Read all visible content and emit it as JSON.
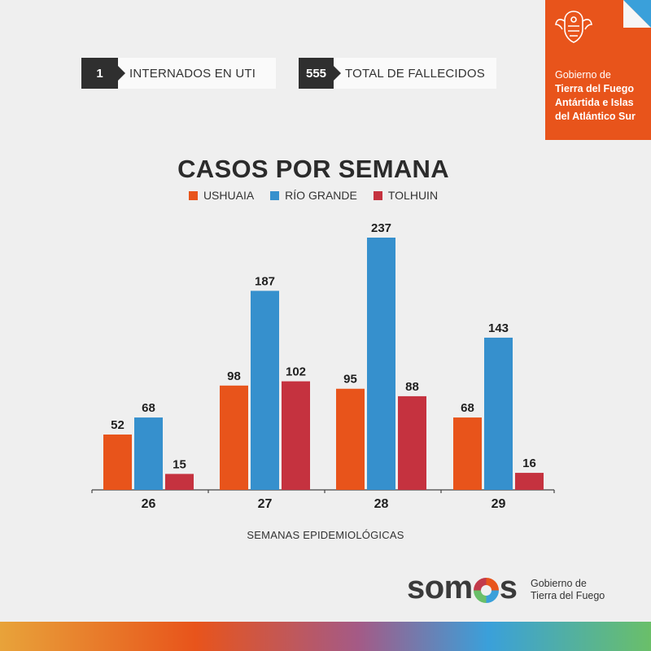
{
  "stats": [
    {
      "value": "1",
      "label": "INTERNADOS EN UTI"
    },
    {
      "value": "555",
      "label": "TOTAL DE FALLECIDOS"
    }
  ],
  "gov_badge": {
    "line1": "Gobierno de",
    "line2": "Tierra del Fuego",
    "line3": "Antártida e Islas",
    "line4": "del Atlántico Sur",
    "color": "#e8541b"
  },
  "footer": {
    "logo_text_a": "som",
    "logo_text_b": "s",
    "gov_line1": "Gobierno de",
    "gov_line2": "Tierra del Fuego"
  },
  "chart_data": {
    "type": "bar",
    "title": "CASOS POR SEMANA",
    "xlabel": "SEMANAS EPIDEMIOLÓGICAS",
    "ylabel": "",
    "categories": [
      "26",
      "27",
      "28",
      "29"
    ],
    "series": [
      {
        "name": "USHUAIA",
        "color": "#e8541b",
        "values": [
          52,
          98,
          95,
          68
        ]
      },
      {
        "name": "RÍO GRANDE",
        "color": "#3690cd",
        "values": [
          68,
          187,
          237,
          143
        ]
      },
      {
        "name": "TOLHUIN",
        "color": "#c5323f",
        "values": [
          15,
          102,
          88,
          16
        ]
      }
    ],
    "ylim": [
      0,
      237
    ],
    "grid": false,
    "legend_position": "top"
  }
}
